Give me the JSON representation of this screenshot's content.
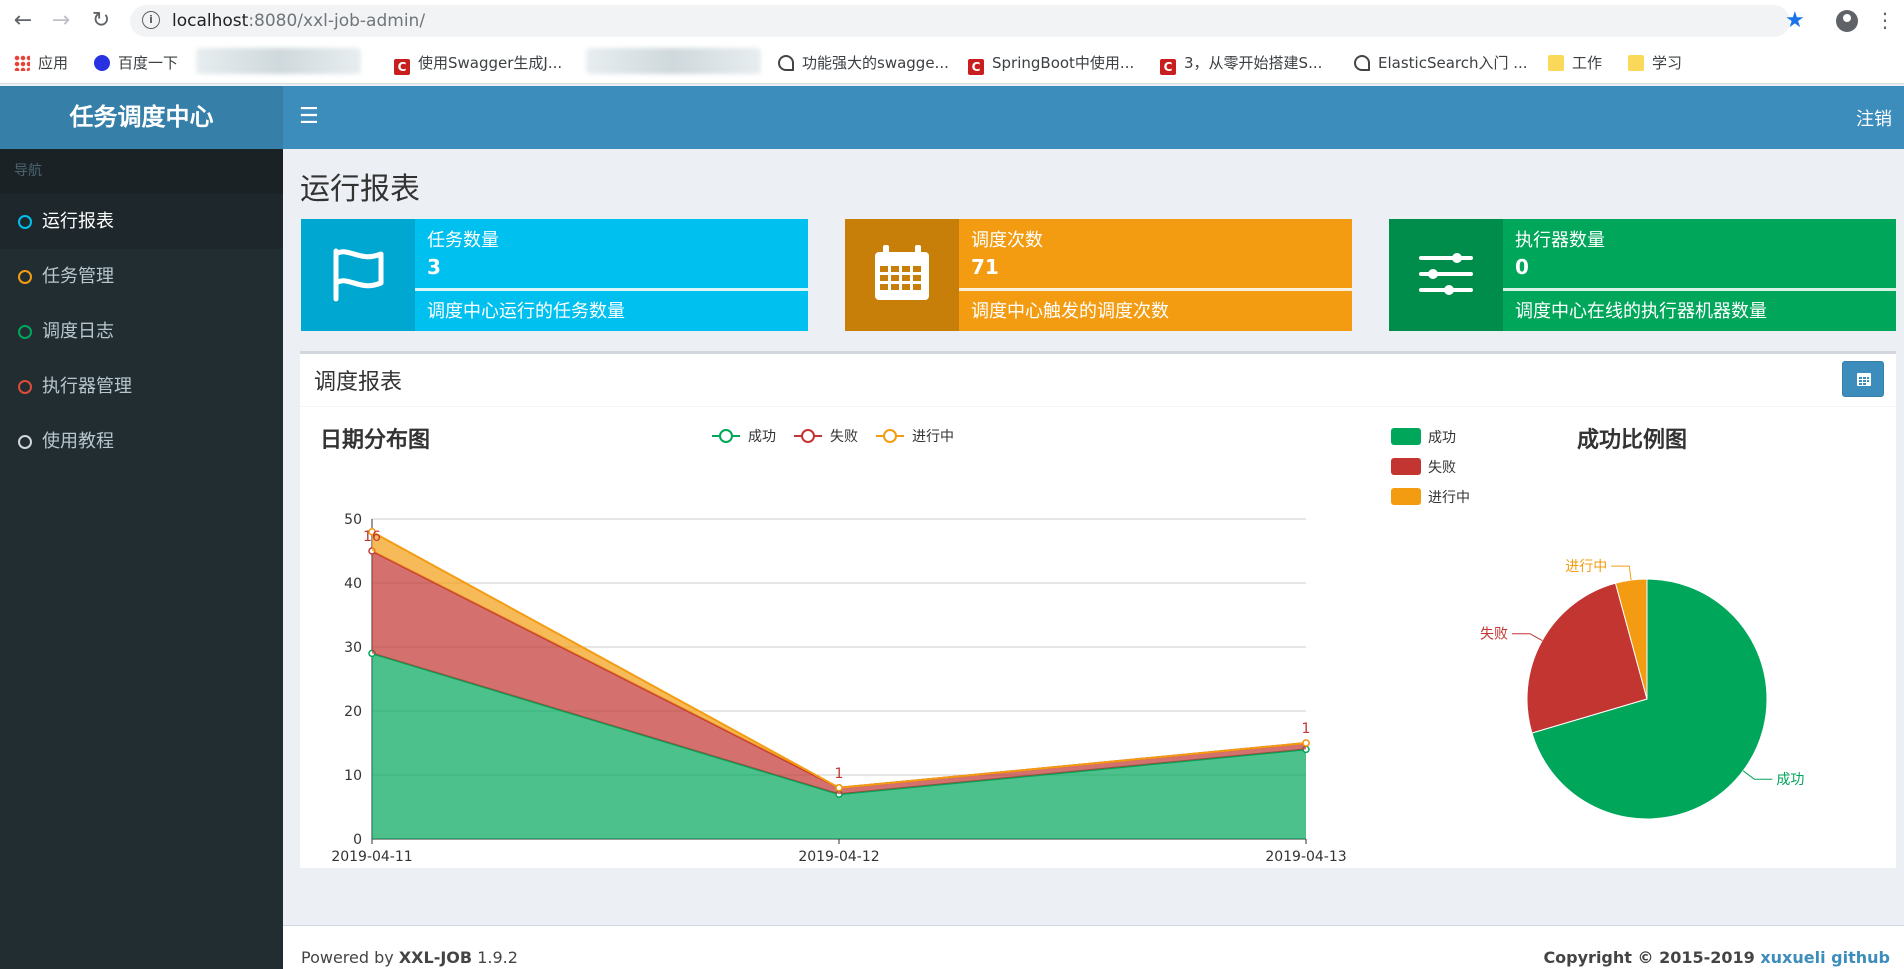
{
  "browser": {
    "url_host": "localhost",
    "url_rest": ":8080/xxl-job-admin/",
    "bookmarks": [
      {
        "label": "应用",
        "icon": "apps-grid-icon"
      },
      {
        "label": "百度一下",
        "icon": "baidu-paw-icon"
      },
      {
        "label": "使用Swagger生成J...",
        "icon": "csdn-icon"
      },
      {
        "label": "功能强大的swagge...",
        "icon": "site-icon"
      },
      {
        "label": "SpringBoot中使用...",
        "icon": "csdn-icon"
      },
      {
        "label": "3，从零开始搭建S...",
        "icon": "csdn-icon"
      },
      {
        "label": "ElasticSearch入门 ...",
        "icon": "site-icon"
      },
      {
        "label": "工作",
        "icon": "folder-icon"
      },
      {
        "label": "学习",
        "icon": "folder-icon"
      }
    ]
  },
  "header": {
    "logo": "任务调度中心",
    "logout": "注销"
  },
  "sidebar": {
    "section": "导航",
    "items": [
      {
        "label": "运行报表",
        "color": "#00c0ef",
        "active": true
      },
      {
        "label": "任务管理",
        "color": "#f39c12"
      },
      {
        "label": "调度日志",
        "color": "#00a65a"
      },
      {
        "label": "执行器管理",
        "color": "#dd4b39"
      },
      {
        "label": "使用教程",
        "color": "#d2d6de"
      }
    ]
  },
  "main": {
    "title": "运行报表",
    "info_boxes": [
      {
        "label": "任务数量",
        "value": "3",
        "desc": "调度中心运行的任务数量",
        "color": "#00c0ef",
        "icon_bg": "#00a7d0",
        "icon": "flag-icon"
      },
      {
        "label": "调度次数",
        "value": "71",
        "desc": "调度中心触发的调度次数",
        "color": "#f39c12",
        "icon_bg": "#c87f0a",
        "icon": "calendar-icon"
      },
      {
        "label": "执行器数量",
        "value": "0",
        "desc": "调度中心在线的执行器机器数量",
        "color": "#00a65a",
        "icon_bg": "#008d4c",
        "icon": "sliders-icon"
      }
    ],
    "panel_title": "调度报表"
  },
  "chart_data": [
    {
      "type": "area",
      "title": "日期分布图",
      "stacked": true,
      "categories": [
        "2019-04-11",
        "2019-04-12",
        "2019-04-13"
      ],
      "ylim": [
        0,
        50
      ],
      "yticks": [
        0,
        10,
        20,
        30,
        40,
        50
      ],
      "grid": true,
      "legend_position": "top",
      "series": [
        {
          "name": "成功",
          "values": [
            29,
            7,
            14
          ],
          "color": "#00a65a"
        },
        {
          "name": "失败",
          "values": [
            16,
            1,
            1
          ],
          "color": "#c23531"
        },
        {
          "name": "进行中",
          "values": [
            3,
            0,
            0
          ],
          "color": "#f39c12"
        }
      ],
      "data_labels": [
        {
          "series": "失败",
          "category": "2019-04-11",
          "text": "16"
        },
        {
          "series": "失败",
          "category": "2019-04-12",
          "text": "1"
        },
        {
          "series": "失败",
          "category": "2019-04-13",
          "text": "1"
        }
      ]
    },
    {
      "type": "pie",
      "title": "成功比例图",
      "legend_position": "top-left",
      "slices": [
        {
          "name": "成功",
          "value": 50,
          "color": "#00a65a"
        },
        {
          "name": "失败",
          "value": 18,
          "color": "#c23531"
        },
        {
          "name": "进行中",
          "value": 3,
          "color": "#f39c12"
        }
      ]
    }
  ],
  "footer": {
    "powered": "Powered by",
    "product": "XXL-JOB",
    "version": "1.9.2",
    "copyright": "Copyright © 2015-2019",
    "author": "xuxueli",
    "github": "github"
  }
}
